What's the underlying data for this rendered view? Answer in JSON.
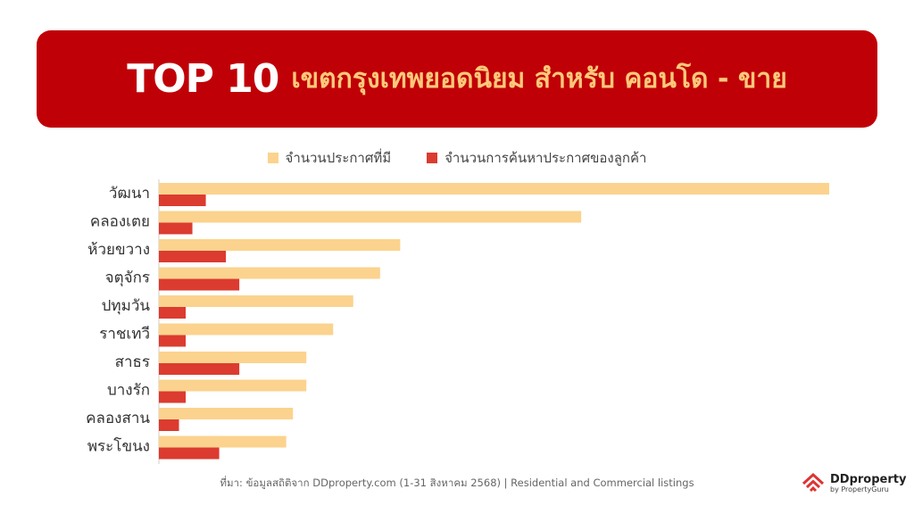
{
  "header": {
    "title_main": "TOP 10",
    "title_sub": "เขตกรุงเทพยอดนิยม สำหรับ คอนโด - ขาย"
  },
  "colors": {
    "banner": "#c00007",
    "series1": "#fbd38e",
    "series2": "#dc3b2f"
  },
  "chart_data": {
    "type": "bar",
    "orientation": "horizontal",
    "categories": [
      "วัฒนา",
      "คลองเตย",
      "ห้วยขวาง",
      "จตุจักร",
      "ปทุมวัน",
      "ราชเทวี",
      "สาธร",
      "บางรัก",
      "คลองสาน",
      "พระโขนง"
    ],
    "series": [
      {
        "name": "จำนวนประกาศที่มี",
        "values": [
          100,
          63,
          36,
          33,
          29,
          26,
          22,
          22,
          20,
          19
        ]
      },
      {
        "name": "จำนวนการค้นหาประกาศของลูกค้า",
        "values": [
          7,
          5,
          10,
          12,
          4,
          4,
          12,
          4,
          3,
          9
        ]
      }
    ],
    "xlim": [
      0,
      100
    ],
    "grid": false,
    "legend": "top"
  },
  "footer": {
    "source": "ที่มา: ข้อมูลสถิติจาก DDproperty.com (1-31 สิงหาคม 2568) | Residential and Commercial listings"
  },
  "logo": {
    "name": "DDproperty",
    "sub": "by PropertyGuru"
  }
}
